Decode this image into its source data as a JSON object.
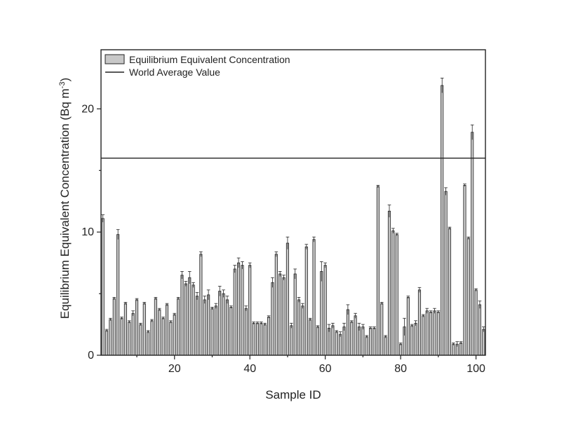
{
  "chart_data": {
    "type": "bar",
    "xlabel": "Sample ID",
    "ylabel": "Equilibrium Equivalent Concentration (Bq m-3)",
    "ylabel_parts": [
      "Equilibrium Equivalent Concentration (Bq m",
      "-3",
      ")"
    ],
    "xlim": [
      0.5,
      102.5
    ],
    "ylim": [
      0,
      24.8
    ],
    "x_ticks": [
      20,
      40,
      60,
      80,
      100
    ],
    "y_ticks": [
      0,
      10,
      20
    ],
    "grid": false,
    "legend_position": "top-left",
    "legend": {
      "bar_label": "Equilibrium Equivalent Concentration",
      "line_label": "World Average Value"
    },
    "reference_line": {
      "name": "World Average Value",
      "value": 16
    },
    "bar_color": "#c8c8c8",
    "series": [
      {
        "name": "Equilibrium Equivalent Concentration",
        "x": [
          1,
          2,
          3,
          4,
          5,
          6,
          7,
          8,
          9,
          10,
          11,
          12,
          13,
          14,
          15,
          16,
          17,
          18,
          19,
          20,
          21,
          22,
          23,
          24,
          25,
          26,
          27,
          28,
          29,
          30,
          31,
          32,
          33,
          34,
          35,
          36,
          37,
          38,
          39,
          40,
          41,
          42,
          43,
          44,
          45,
          46,
          47,
          48,
          49,
          50,
          51,
          52,
          53,
          54,
          55,
          56,
          57,
          58,
          59,
          60,
          61,
          62,
          63,
          64,
          65,
          66,
          67,
          68,
          69,
          70,
          71,
          72,
          73,
          74,
          75,
          76,
          77,
          78,
          79,
          80,
          81,
          82,
          83,
          84,
          85,
          86,
          87,
          88,
          89,
          90,
          91,
          92,
          93,
          94,
          95,
          96,
          97,
          98,
          99,
          100,
          101,
          102
        ],
        "values": [
          11.1,
          2.0,
          2.9,
          4.6,
          9.8,
          3.0,
          4.2,
          2.7,
          3.4,
          4.5,
          2.5,
          4.2,
          1.9,
          2.8,
          4.6,
          3.7,
          3.0,
          4.1,
          2.7,
          3.3,
          4.6,
          6.5,
          5.8,
          6.3,
          5.7,
          4.8,
          8.2,
          4.5,
          4.9,
          3.8,
          4.0,
          5.2,
          5.0,
          4.5,
          3.9,
          7.0,
          7.5,
          7.3,
          3.8,
          7.3,
          2.6,
          2.6,
          2.6,
          2.5,
          3.1,
          5.9,
          8.2,
          6.6,
          6.3,
          9.1,
          2.4,
          6.6,
          4.5,
          4.0,
          8.8,
          2.9,
          9.4,
          2.3,
          6.8,
          7.3,
          2.2,
          2.4,
          1.9,
          1.7,
          2.3,
          3.7,
          2.7,
          3.2,
          2.3,
          2.3,
          1.5,
          2.2,
          2.2,
          13.7,
          4.2,
          1.5,
          11.7,
          10.1,
          9.8,
          0.9,
          2.3,
          4.7,
          2.4,
          2.6,
          5.3,
          3.2,
          3.6,
          3.5,
          3.6,
          3.5,
          21.9,
          13.3,
          10.3,
          0.9,
          0.9,
          1.0,
          13.8,
          9.5,
          18.1,
          5.3,
          4.1,
          2.1
        ],
        "errors": [
          0.3,
          0.1,
          0.1,
          0.1,
          0.4,
          0.1,
          0.1,
          0.1,
          0.2,
          0.1,
          0.1,
          0.1,
          0.1,
          0.1,
          0.1,
          0.1,
          0.1,
          0.1,
          0.1,
          0.1,
          0.1,
          0.3,
          0.2,
          0.5,
          0.2,
          0.3,
          0.2,
          0.3,
          0.4,
          0.1,
          0.2,
          0.4,
          0.3,
          0.3,
          0.1,
          0.3,
          0.4,
          0.3,
          0.2,
          0.2,
          0.1,
          0.1,
          0.1,
          0.1,
          0.1,
          0.4,
          0.2,
          0.2,
          0.2,
          0.5,
          0.2,
          0.4,
          0.2,
          0.2,
          0.2,
          0.1,
          0.2,
          0.1,
          0.8,
          0.2,
          0.3,
          0.2,
          0.1,
          0.2,
          0.3,
          0.4,
          0.1,
          0.2,
          0.3,
          0.2,
          0.1,
          0.1,
          0.1,
          0.1,
          0.1,
          0.1,
          0.5,
          0.2,
          0.1,
          0.1,
          0.7,
          0.1,
          0.1,
          0.2,
          0.2,
          0.1,
          0.2,
          0.1,
          0.2,
          0.1,
          0.6,
          0.3,
          0.1,
          0.1,
          0.2,
          0.1,
          0.1,
          0.1,
          0.6,
          0.1,
          0.3,
          0.2
        ]
      }
    ]
  }
}
